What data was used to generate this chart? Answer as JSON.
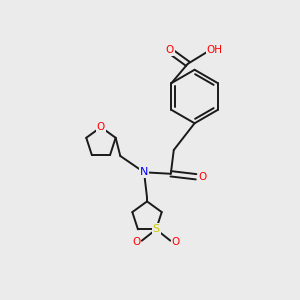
{
  "background_color": "#ebebeb",
  "bond_color": "#1a1a1a",
  "atom_colors": {
    "O": "#ff0000",
    "N": "#0000ff",
    "S": "#cccc00",
    "H": "#909090",
    "C": "#1a1a1a"
  },
  "figsize": [
    3.0,
    3.0
  ],
  "dpi": 100
}
